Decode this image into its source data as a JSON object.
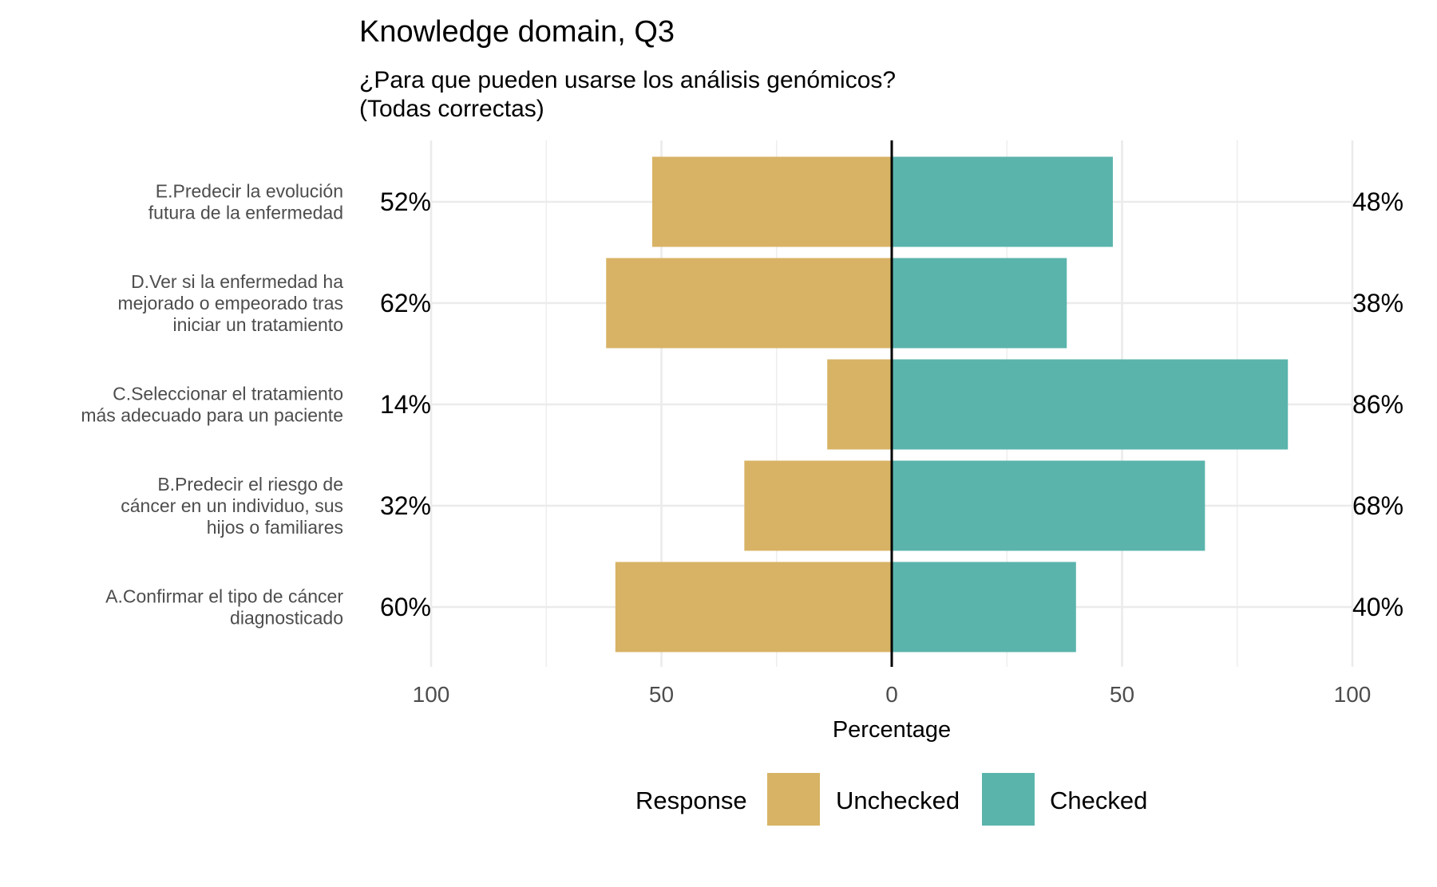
{
  "chart_data": {
    "type": "bar",
    "orientation": "horizontal-diverging",
    "title": "Knowledge domain, Q3",
    "subtitle": [
      "¿Para que pueden usarse los análisis genómicos?",
      "(Todas correctas)"
    ],
    "xlabel": "Percentage",
    "xlim": [
      -100,
      100
    ],
    "x_ticks": [
      {
        "value": -100,
        "label": "100"
      },
      {
        "value": -50,
        "label": "50"
      },
      {
        "value": 0,
        "label": "0"
      },
      {
        "value": 50,
        "label": "50"
      },
      {
        "value": 100,
        "label": "100"
      }
    ],
    "categories": [
      {
        "lines": [
          "E.Predecir la evolución",
          "futura de la enfermedad"
        ]
      },
      {
        "lines": [
          "D.Ver si la enfermedad ha",
          "mejorado o empeorado tras",
          "iniciar un tratamiento"
        ]
      },
      {
        "lines": [
          "C.Seleccionar el tratamiento",
          "más adecuado para un paciente"
        ]
      },
      {
        "lines": [
          "B.Predecir el riesgo de",
          "cáncer en un individuo, sus",
          "hijos o familiares"
        ]
      },
      {
        "lines": [
          "A.Confirmar el tipo de cáncer",
          "diagnosticado"
        ]
      }
    ],
    "series": [
      {
        "name": "Unchecked",
        "color": "#D8B365",
        "values": [
          52,
          62,
          14,
          32,
          60
        ],
        "labels": [
          "52%",
          "62%",
          "14%",
          "32%",
          "60%"
        ]
      },
      {
        "name": "Checked",
        "color": "#5AB4AC",
        "values": [
          48,
          38,
          86,
          68,
          40
        ],
        "labels": [
          "48%",
          "38%",
          "86%",
          "68%",
          "40%"
        ]
      }
    ],
    "legend": {
      "title": "Response",
      "position": "bottom",
      "items": [
        "Unchecked",
        "Checked"
      ]
    },
    "grid": true
  }
}
